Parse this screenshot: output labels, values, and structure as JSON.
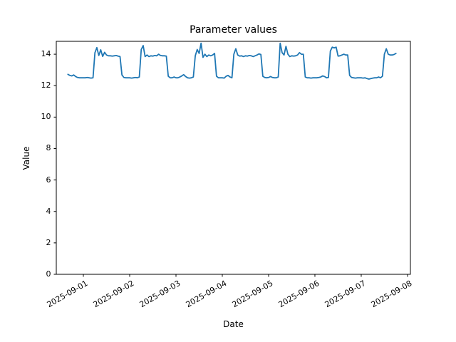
{
  "title": "Parameter values",
  "axes": {
    "xlabel": "Date",
    "ylabel": "Value",
    "x_tick_labels": [
      "2025-09-01",
      "2025-09-02",
      "2025-09-03",
      "2025-09-04",
      "2025-09-05",
      "2025-09-06",
      "2025-09-07",
      "2025-09-08"
    ],
    "y_tick_labels": [
      "0",
      "2",
      "4",
      "6",
      "8",
      "10",
      "12",
      "14"
    ],
    "y_tick_values": [
      0,
      2,
      4,
      6,
      8,
      10,
      12,
      14
    ],
    "xlim_days_from_first_tick": [
      -0.5846,
      7.062
    ],
    "ylim": [
      0,
      14.82
    ]
  },
  "colors": {
    "line": "#1f77b4",
    "spine": "#000000",
    "text": "#000000",
    "background": "#ffffff"
  },
  "chart_data": {
    "type": "line",
    "title": "Parameter values",
    "xlabel": "Date",
    "ylabel": "Value",
    "x_axis": "time, hourly samples; hours relative to 2025-09-01 00:00",
    "x_start_hour": -8,
    "x_step_hours": 1,
    "x_tick_dates": [
      "2025-09-01",
      "2025-09-02",
      "2025-09-03",
      "2025-09-04",
      "2025-09-05",
      "2025-09-06",
      "2025-09-07",
      "2025-09-08"
    ],
    "ylim": [
      0,
      14.82
    ],
    "grid": false,
    "legend": "none",
    "values": [
      12.72,
      12.65,
      12.62,
      12.68,
      12.58,
      12.52,
      12.5,
      12.5,
      12.5,
      12.5,
      12.52,
      12.5,
      12.48,
      12.5,
      14.1,
      14.42,
      13.92,
      14.28,
      13.86,
      14.12,
      13.95,
      13.9,
      13.9,
      13.88,
      13.9,
      13.92,
      13.88,
      13.85,
      12.68,
      12.52,
      12.5,
      12.5,
      12.5,
      12.48,
      12.5,
      12.52,
      12.5,
      12.55,
      14.3,
      14.55,
      13.85,
      13.95,
      13.85,
      13.9,
      13.88,
      13.92,
      13.9,
      14.0,
      13.92,
      13.9,
      13.9,
      13.88,
      12.6,
      12.5,
      12.5,
      12.55,
      12.5,
      12.5,
      12.55,
      12.62,
      12.7,
      12.58,
      12.5,
      12.48,
      12.5,
      12.55,
      13.9,
      14.3,
      14.05,
      14.7,
      13.8,
      14.0,
      13.85,
      13.95,
      13.9,
      13.95,
      14.05,
      12.6,
      12.5,
      12.5,
      12.5,
      12.48,
      12.6,
      12.65,
      12.55,
      12.5,
      14.0,
      14.35,
      13.95,
      13.88,
      13.9,
      13.85,
      13.9,
      13.88,
      13.92,
      13.9,
      13.85,
      13.9,
      13.95,
      14.02,
      13.98,
      12.6,
      12.52,
      12.5,
      12.52,
      12.58,
      12.52,
      12.5,
      12.5,
      12.55,
      14.7,
      14.1,
      13.95,
      14.5,
      14.0,
      13.85,
      13.9,
      13.88,
      13.9,
      13.95,
      14.1,
      14.0,
      14.0,
      12.55,
      12.5,
      12.5,
      12.48,
      12.5,
      12.5,
      12.5,
      12.52,
      12.55,
      12.62,
      12.58,
      12.5,
      12.52,
      14.2,
      14.45,
      14.4,
      14.45,
      13.88,
      13.9,
      13.95,
      14.0,
      13.95,
      13.95,
      12.65,
      12.52,
      12.5,
      12.48,
      12.5,
      12.5,
      12.5,
      12.48,
      12.5,
      12.45,
      12.42,
      12.45,
      12.48,
      12.5,
      12.5,
      12.55,
      12.5,
      12.6,
      14.0,
      14.35,
      14.0,
      13.95,
      13.95,
      13.98,
      14.05
    ]
  }
}
